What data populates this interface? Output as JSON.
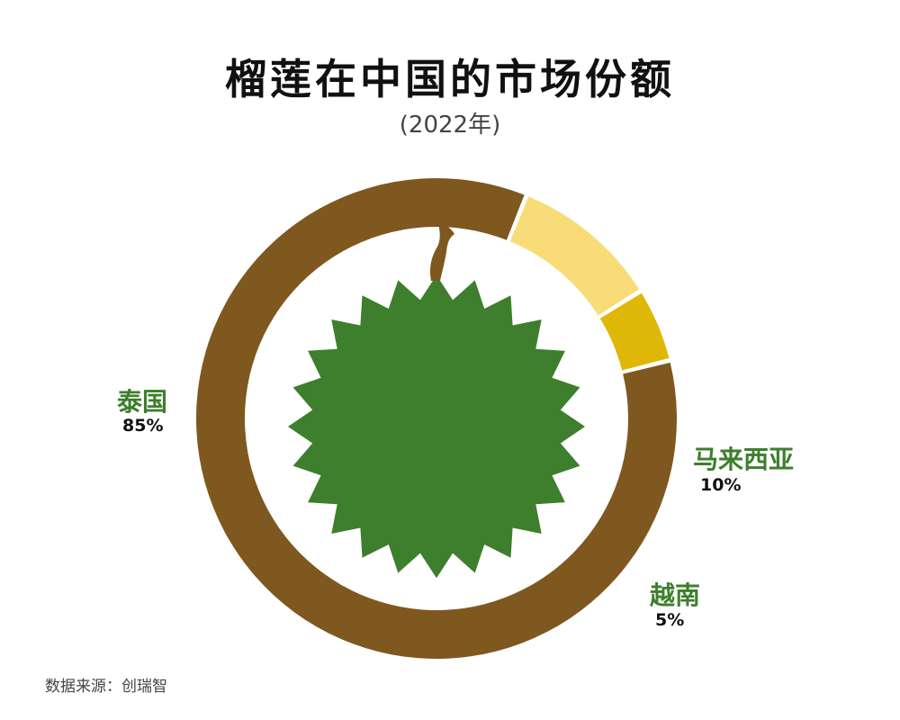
{
  "chart_data": {
    "type": "pie",
    "title": "榴莲在中国的市场份额",
    "subtitle": "(2022年)",
    "slices": [
      {
        "name": "泰国",
        "value": 85,
        "label": "85%",
        "color": "#7f581f"
      },
      {
        "name": "马来西亚",
        "value": 10,
        "label": "10%",
        "color": "#f7dc78"
      },
      {
        "name": "越南",
        "value": 5,
        "label": "5%",
        "color": "#dfb807"
      }
    ],
    "center_illustration": "durian-icon",
    "illustration_colors": {
      "fruit": "#3d7f2c",
      "stem": "#7f581f"
    }
  },
  "source": "数据来源：创瑞智"
}
